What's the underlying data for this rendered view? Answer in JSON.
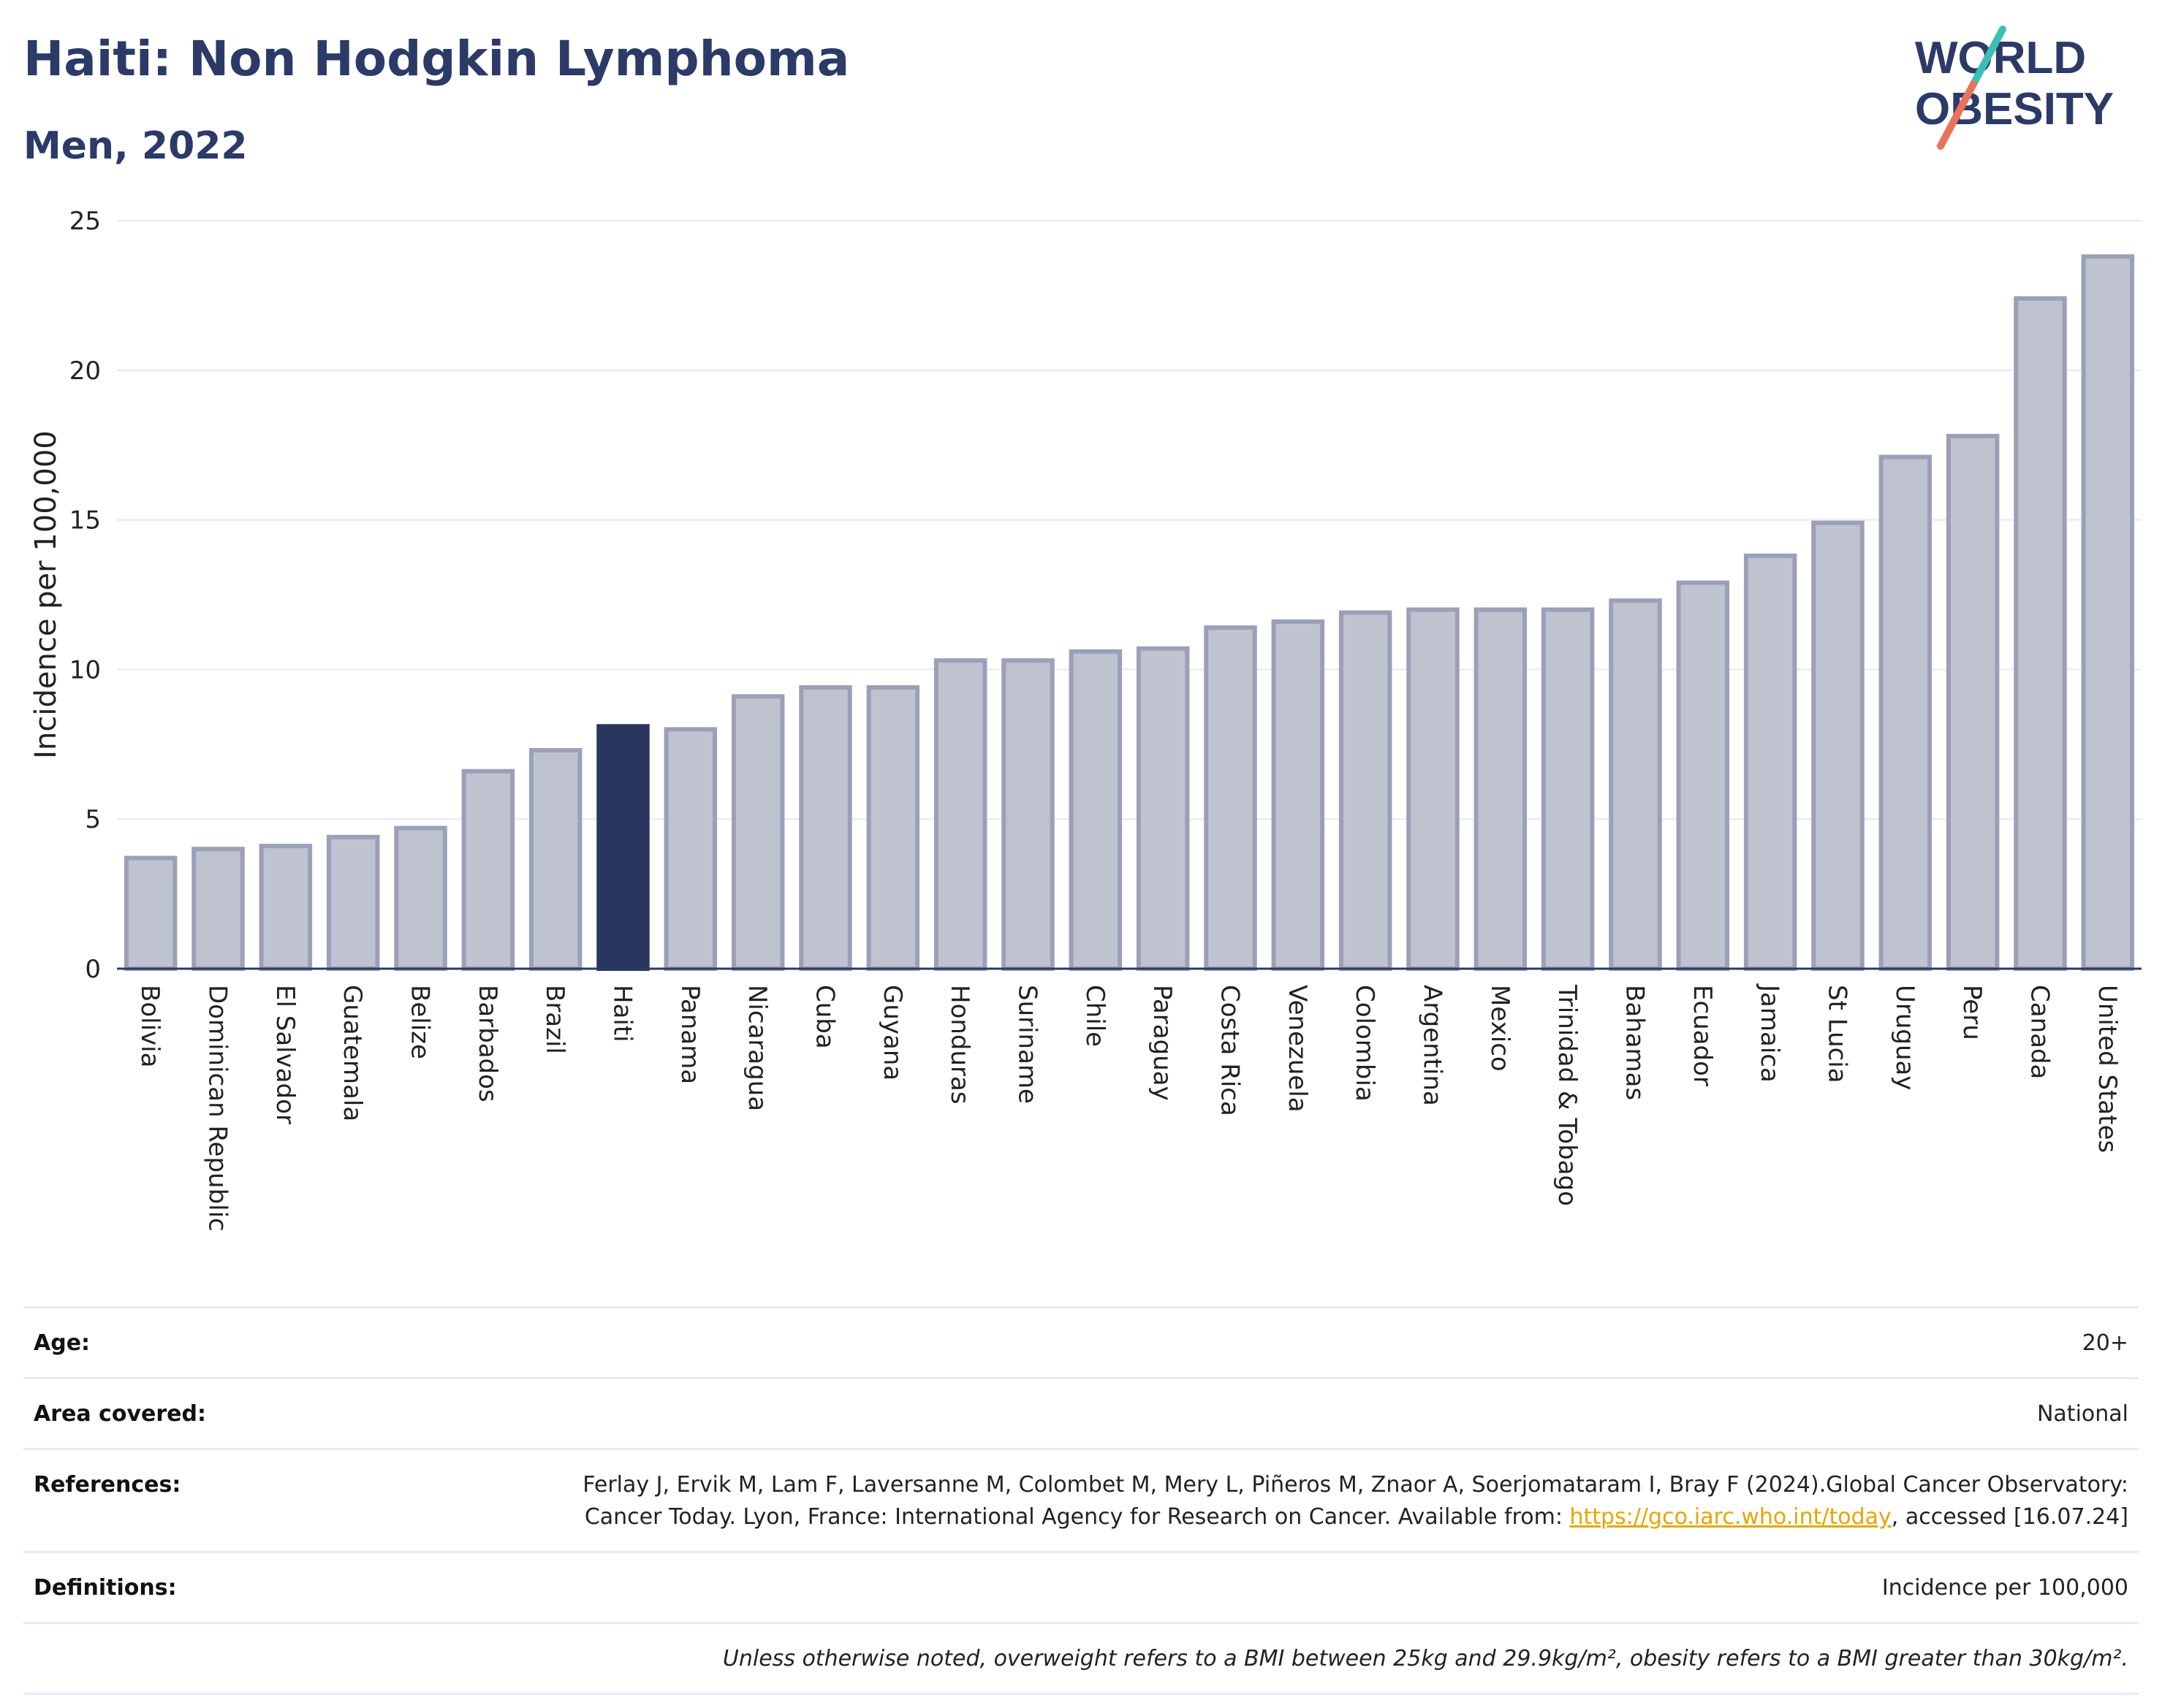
{
  "header": {
    "title": "Haiti: Non Hodgkin Lymphoma",
    "subtitle": "Men, 2022",
    "logo_line1": "WORLD",
    "logo_line2": "OBESITY"
  },
  "colors": {
    "highlight_bar": "#2b3660",
    "bar_fill": "#bfc3cf",
    "bar_stroke": "#9aa0b8",
    "title": "#2b3a67",
    "logo_teal": "#3bbfb5",
    "logo_coral": "#e8735a",
    "link": "#e8a500"
  },
  "chart_data": {
    "type": "bar",
    "ylabel": "Incidence per 100,000",
    "ylim": [
      0,
      25
    ],
    "yticks": [
      0,
      5,
      10,
      15,
      20,
      25
    ],
    "grid": true,
    "highlight": "Haiti",
    "categories": [
      "Bolivia",
      "Dominican Republic",
      "El Salvador",
      "Guatemala",
      "Belize",
      "Barbados",
      "Brazil",
      "Haiti",
      "Panama",
      "Nicaragua",
      "Cuba",
      "Guyana",
      "Honduras",
      "Suriname",
      "Chile",
      "Paraguay",
      "Costa Rica",
      "Venezuela",
      "Colombia",
      "Argentina",
      "Mexico",
      "Trinidad & Tobago",
      "Bahamas",
      "Ecuador",
      "Jamaica",
      "St Lucia",
      "Uruguay",
      "Peru",
      "Canada",
      "United States"
    ],
    "values": [
      3.7,
      4.0,
      4.1,
      4.4,
      4.7,
      6.6,
      7.3,
      8.1,
      8.0,
      9.1,
      9.4,
      9.4,
      10.3,
      10.3,
      10.6,
      10.7,
      11.4,
      11.6,
      11.9,
      12.0,
      12.0,
      12.0,
      12.3,
      12.9,
      13.8,
      14.9,
      17.1,
      17.8,
      22.4,
      23.8
    ]
  },
  "info": {
    "age_label": "Age:",
    "age_value": "20+",
    "area_label": "Area covered:",
    "area_value": "National",
    "references_label": "References:",
    "references_text": "Ferlay J, Ervik M, Lam F, Laversanne M, Colombet M, Mery L, Piñeros M, Znaor A, Soerjomataram I, Bray F (2024).Global Cancer Observatory: Cancer Today. Lyon, France: International Agency for Research on Cancer. Available from: ",
    "references_link": "https://gco.iarc.who.int/today",
    "references_suffix": ", accessed [16.07.24]",
    "definitions_label": "Definitions:",
    "definitions_value": "Incidence per 100,000",
    "note": "Unless otherwise noted, overweight refers to a BMI between 25kg and 29.9kg/m², obesity refers to a BMI greater than 30kg/m²."
  }
}
